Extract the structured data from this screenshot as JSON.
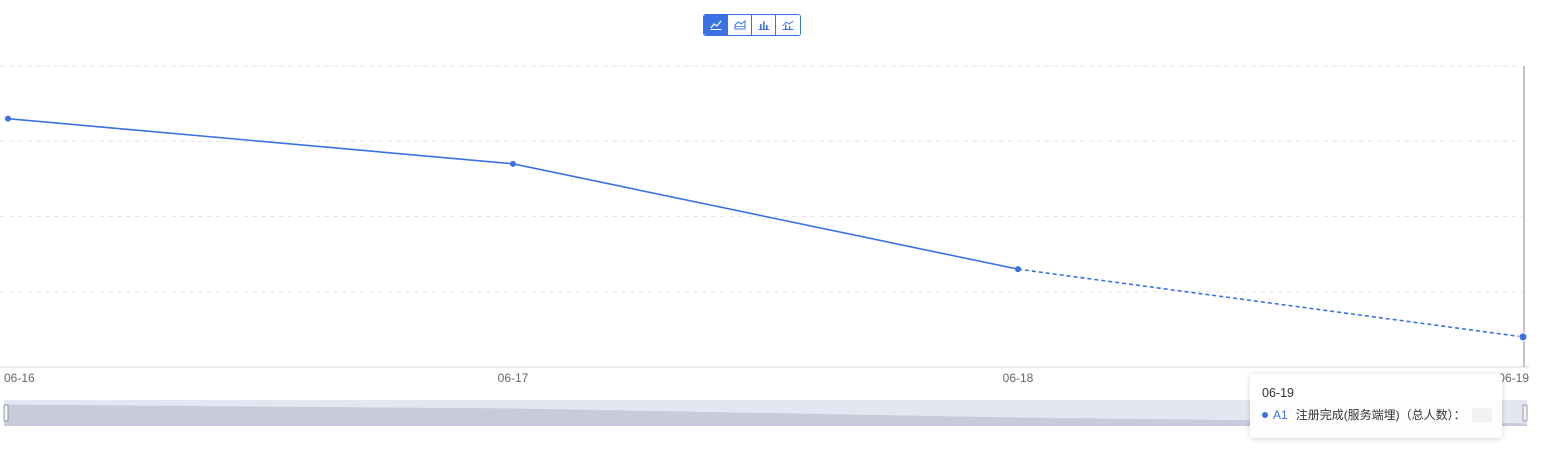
{
  "toolbar": {
    "buttons": [
      {
        "name": "line-chart-icon",
        "active": true
      },
      {
        "name": "area-chart-icon",
        "active": false
      },
      {
        "name": "bar-chart-icon",
        "active": false
      },
      {
        "name": "combo-chart-icon",
        "active": false
      }
    ]
  },
  "colors": {
    "series": "#3a72e6",
    "grid": "#e6e6e6",
    "axis": "#d9d9d9",
    "zoom_track": "#e4e6f1",
    "zoom_fill": "#c8cbdc"
  },
  "chart_data": {
    "type": "line",
    "categories": [
      "06-16",
      "06-17",
      "06-18",
      "06-19"
    ],
    "series": [
      {
        "name": "A1",
        "values": [
          82.5,
          67.5,
          32.5,
          10
        ],
        "projected_from_index": 2
      }
    ],
    "ylim": [
      0,
      100
    ],
    "grid": true,
    "dashed_last_segment": true,
    "data_zoom": {
      "start": 0,
      "end": 100
    }
  },
  "tooltip": {
    "title": "06-19",
    "series_label": "A1",
    "metric_label": "注册完成(服务端埋)（总人数）：",
    "value": ""
  }
}
